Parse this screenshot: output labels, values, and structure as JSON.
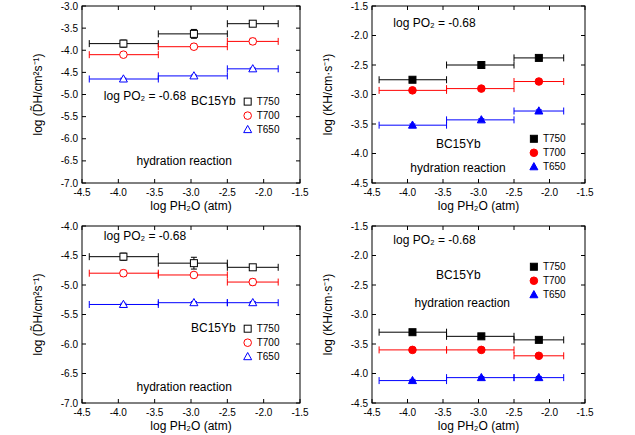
{
  "chart_data": [
    {
      "type": "scatter",
      "x_label": "log PH₂O (atm)",
      "y_label": "log (D̃H/cm²s⁻¹)",
      "annotations": [
        "log PO₂ = -0.68",
        "BC15Yb",
        "hydration reaction"
      ],
      "xlim": [
        -4.5,
        -1.5
      ],
      "xticks": [
        -4.5,
        {
          "value": -4.0,
          "label": "-4.0"
        },
        -3.5,
        {
          "value": -3.0,
          "label": "-3.0"
        },
        -2.5,
        {
          "value": -2.0,
          "label": "-2.0"
        },
        -1.5
      ],
      "ylim": [
        -7.0,
        -3.0
      ],
      "yticks": [
        {
          "value": -7.0,
          "label": "-7.0"
        },
        -6.5,
        {
          "value": -6.0,
          "label": "-6.0"
        },
        -5.5,
        {
          "value": -5.0,
          "label": "-5.0"
        },
        -4.5,
        {
          "value": -4.0,
          "label": "-4.0"
        },
        -3.5,
        {
          "value": -3.0,
          "label": "-3.0"
        }
      ],
      "legend": "lower right",
      "series": [
        {
          "name": "T750",
          "color": "#000000",
          "marker": "open-square",
          "x": [
            -3.93,
            -2.96,
            -2.15
          ],
          "x_min": [
            -4.4,
            -3.45,
            -2.5
          ],
          "x_max": [
            -3.45,
            -2.5,
            -1.8
          ],
          "values": [
            -3.85,
            -3.63,
            -3.4
          ],
          "errors": [
            0.08,
            0.1,
            0.04
          ]
        },
        {
          "name": "T700",
          "color": "#ff0000",
          "marker": "open-circle",
          "x": [
            -3.93,
            -2.96,
            -2.15
          ],
          "x_min": [
            -4.4,
            -3.45,
            -2.5
          ],
          "x_max": [
            -3.45,
            -2.5,
            -1.8
          ],
          "values": [
            -4.1,
            -3.92,
            -3.8
          ],
          "errors": [
            0.03,
            0.06,
            0.07
          ]
        },
        {
          "name": "T650",
          "color": "#0000ff",
          "marker": "open-triangle",
          "x": [
            -3.93,
            -2.96,
            -2.15
          ],
          "x_min": [
            -4.4,
            -3.45,
            -2.5
          ],
          "x_max": [
            -3.45,
            -2.5,
            -1.8
          ],
          "values": [
            -4.65,
            -4.58,
            -4.42
          ],
          "errors": [
            0.02,
            0.02,
            0.02
          ]
        }
      ]
    },
    {
      "type": "scatter",
      "x_label": "log PH₂O (atm)",
      "y_label": "log (KH/cm·s⁻¹)",
      "annotations": [
        "log PO₂ = -0.68",
        "BC15Yb",
        "hydration reaction"
      ],
      "xlim": [
        -4.5,
        -1.5
      ],
      "xticks": [
        -4.5,
        {
          "value": -4.0,
          "label": "-4.0"
        },
        -3.5,
        {
          "value": -3.0,
          "label": "-3.0"
        },
        -2.5,
        {
          "value": -2.0,
          "label": "-2.0"
        },
        -1.5
      ],
      "ylim": [
        -4.5,
        -1.5
      ],
      "yticks": [
        -4.5,
        {
          "value": -4.0,
          "label": "-4.0"
        },
        -3.5,
        {
          "value": -3.0,
          "label": "-3.0"
        },
        -2.5,
        {
          "value": -2.0,
          "label": "-2.0"
        },
        -1.5
      ],
      "legend": "lower right",
      "series": [
        {
          "name": "T750",
          "color": "#000000",
          "marker": "square",
          "x": [
            -3.93,
            -2.96,
            -2.15
          ],
          "x_min": [
            -4.4,
            -3.45,
            -2.5
          ],
          "x_max": [
            -3.45,
            -2.5,
            -1.8
          ],
          "values": [
            -2.75,
            -2.5,
            -2.38
          ],
          "errors": [
            0.02,
            0.02,
            0.02
          ]
        },
        {
          "name": "T700",
          "color": "#ff0000",
          "marker": "circle",
          "x": [
            -3.93,
            -2.96,
            -2.15
          ],
          "x_min": [
            -4.4,
            -3.45,
            -2.5
          ],
          "x_max": [
            -3.45,
            -2.5,
            -1.8
          ],
          "values": [
            -2.93,
            -2.9,
            -2.78
          ],
          "errors": [
            0.02,
            0.02,
            0.02
          ]
        },
        {
          "name": "T650",
          "color": "#0000ff",
          "marker": "triangle",
          "x": [
            -3.93,
            -2.96,
            -2.15
          ],
          "x_min": [
            -4.4,
            -3.45,
            -2.5
          ],
          "x_max": [
            -3.45,
            -2.5,
            -1.8
          ],
          "values": [
            -3.52,
            -3.43,
            -3.28
          ],
          "errors": [
            0.02,
            0.02,
            0.02
          ]
        }
      ]
    },
    {
      "type": "scatter",
      "x_label": "log PH₂O (atm)",
      "y_label": "log (D̃H/cm²s⁻¹)",
      "annotations": [
        "log PO₂ = -0.68",
        "BC15Yb",
        "hydration reaction"
      ],
      "xlim": [
        -4.5,
        -1.5
      ],
      "xticks": [
        -4.5,
        {
          "value": -4.0,
          "label": "-4.0"
        },
        -3.5,
        {
          "value": -3.0,
          "label": "-3.0"
        },
        -2.5,
        {
          "value": -2.0,
          "label": "-2.0"
        },
        -1.5
      ],
      "ylim": [
        -7.0,
        -4.0
      ],
      "yticks": [
        {
          "value": -7.0,
          "label": "-7.0"
        },
        -6.5,
        {
          "value": -6.0,
          "label": "-6.0"
        },
        -5.5,
        {
          "value": -5.0,
          "label": "-5.0"
        },
        -4.5,
        {
          "value": -4.0,
          "label": "-4.0"
        }
      ],
      "legend": "lower right",
      "series": [
        {
          "name": "T750",
          "color": "#000000",
          "marker": "open-square",
          "x": [
            -3.93,
            -2.96,
            -2.15
          ],
          "x_min": [
            -4.4,
            -3.45,
            -2.5
          ],
          "x_max": [
            -3.45,
            -2.5,
            -1.8
          ],
          "values": [
            -4.52,
            -4.63,
            -4.7
          ],
          "errors": [
            0.06,
            0.1,
            0.02
          ]
        },
        {
          "name": "T700",
          "color": "#ff0000",
          "marker": "open-circle",
          "x": [
            -3.93,
            -2.96,
            -2.15
          ],
          "x_min": [
            -4.4,
            -3.45,
            -2.5
          ],
          "x_max": [
            -3.45,
            -2.5,
            -1.8
          ],
          "values": [
            -4.8,
            -4.83,
            -4.95
          ],
          "errors": [
            0.05,
            0.04,
            0.05
          ]
        },
        {
          "name": "T650",
          "color": "#0000ff",
          "marker": "open-triangle",
          "x": [
            -3.93,
            -2.96,
            -2.15
          ],
          "x_min": [
            -4.4,
            -3.45,
            -2.5
          ],
          "x_max": [
            -3.45,
            -2.5,
            -1.8
          ],
          "values": [
            -5.33,
            -5.3,
            -5.3
          ],
          "errors": [
            0.02,
            0.02,
            0.02
          ]
        }
      ]
    },
    {
      "type": "scatter",
      "x_label": "log PH₂O (atm)",
      "y_label": "log (KH/cm·s⁻¹)",
      "annotations": [
        "log PO₂ = -0.68",
        "BC15Yb",
        "hydration reaction"
      ],
      "xlim": [
        -4.5,
        -1.5
      ],
      "xticks": [
        -4.5,
        {
          "value": -4.0,
          "label": "-4.0"
        },
        -3.5,
        {
          "value": -3.0,
          "label": "-3.0"
        },
        -2.5,
        {
          "value": -2.0,
          "label": "-2.0"
        },
        -1.5
      ],
      "ylim": [
        -4.5,
        -1.5
      ],
      "yticks": [
        -4.5,
        {
          "value": -4.0,
          "label": "-4.0"
        },
        -3.5,
        {
          "value": -3.0,
          "label": "-3.0"
        },
        -2.5,
        {
          "value": -2.0,
          "label": "-2.0"
        },
        -1.5
      ],
      "legend": "upper right",
      "series": [
        {
          "name": "T750",
          "color": "#000000",
          "marker": "square",
          "x": [
            -3.93,
            -2.96,
            -2.15
          ],
          "x_min": [
            -4.4,
            -3.45,
            -2.5
          ],
          "x_max": [
            -3.45,
            -2.5,
            -1.8
          ],
          "values": [
            -3.3,
            -3.37,
            -3.43
          ],
          "errors": [
            0.02,
            0.02,
            0.02
          ]
        },
        {
          "name": "T700",
          "color": "#ff0000",
          "marker": "circle",
          "x": [
            -3.93,
            -2.96,
            -2.15
          ],
          "x_min": [
            -4.4,
            -3.45,
            -2.5
          ],
          "x_max": [
            -3.45,
            -2.5,
            -1.8
          ],
          "values": [
            -3.6,
            -3.6,
            -3.7
          ],
          "errors": [
            0.02,
            0.02,
            0.02
          ]
        },
        {
          "name": "T650",
          "color": "#0000ff",
          "marker": "triangle",
          "x": [
            -3.93,
            -2.96,
            -2.15
          ],
          "x_min": [
            -4.4,
            -3.45,
            -2.5
          ],
          "x_max": [
            -3.45,
            -2.5,
            -1.8
          ],
          "values": [
            -4.12,
            -4.07,
            -4.07
          ],
          "errors": [
            0.02,
            0.02,
            0.02
          ]
        }
      ]
    }
  ]
}
